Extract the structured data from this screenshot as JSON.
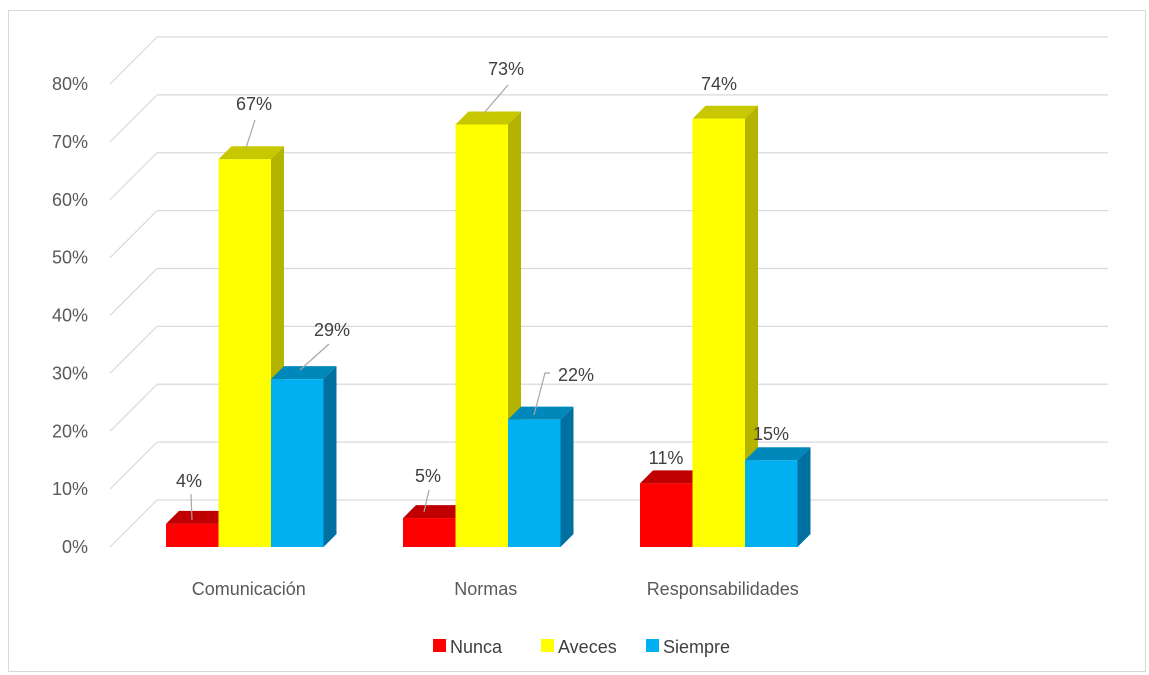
{
  "chart_data": {
    "type": "bar",
    "categories": [
      "Comunicación",
      "Normas",
      "Responsabilidades"
    ],
    "series": [
      {
        "name": "Nunca",
        "values": [
          4,
          5,
          11
        ],
        "labels": [
          "4%",
          "5%",
          "11%"
        ]
      },
      {
        "name": "Aveces",
        "values": [
          67,
          73,
          74
        ],
        "labels": [
          "67%",
          "73%",
          "74%"
        ]
      },
      {
        "name": "Siempre",
        "values": [
          29,
          22,
          15
        ],
        "labels": [
          "29%",
          "22%",
          "15%"
        ]
      }
    ],
    "ylim": [
      0,
      80
    ],
    "yticks": [
      "0%",
      "10%",
      "20%",
      "30%",
      "40%",
      "50%",
      "60%",
      "70%",
      "80%"
    ],
    "title": "",
    "xlabel": "",
    "ylabel": "",
    "legend_position": "bottom",
    "grid": true,
    "colors": {
      "Nunca": {
        "front": "#ff0000",
        "top": "#c00000",
        "side": "#b00000"
      },
      "Aveces": {
        "front": "#ffff00",
        "top": "#c8c800",
        "side": "#b4b400"
      },
      "Siempre": {
        "front": "#00b0f0",
        "top": "#0088bb",
        "side": "#0070a0"
      }
    }
  }
}
